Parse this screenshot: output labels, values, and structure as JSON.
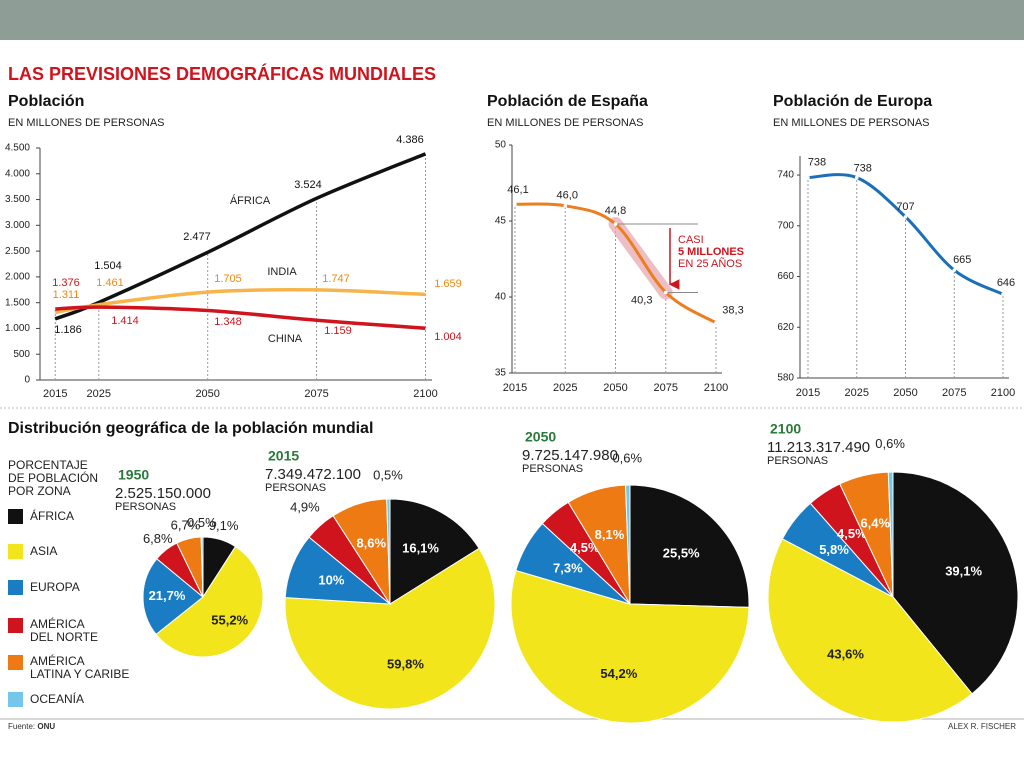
{
  "title": "LAS PREVISIONES DEMOGRÁFICAS MUNDIALES",
  "chart_data": [
    {
      "type": "line",
      "title": "Población",
      "subtitle": "EN MILLONES DE PERSONAS",
      "x": [
        2015,
        2025,
        2050,
        2075,
        2100
      ],
      "xlim": [
        2011.5,
        2101.5
      ],
      "xticks": [
        2015,
        2025,
        2050,
        2075,
        2100
      ],
      "ylim": [
        0,
        4500
      ],
      "yticks": [
        {
          "value": 0,
          "label": "0"
        },
        {
          "value": 500,
          "label": "500"
        },
        {
          "value": 1000,
          "label": "1.000"
        },
        {
          "value": 1500,
          "label": "1.500"
        },
        {
          "value": 2000,
          "label": "2.000"
        },
        {
          "value": 2500,
          "label": "2.500"
        },
        {
          "value": 3000,
          "label": "3.000"
        },
        {
          "value": 3500,
          "label": "3.500"
        },
        {
          "value": 4000,
          "label": "4.000"
        },
        {
          "value": 4500,
          "label": "4.500"
        }
      ],
      "series": [
        {
          "name": "ÁFRICA",
          "color": "#111111",
          "values": [
            1186,
            1504,
            2477,
            3524,
            4386
          ],
          "value_labels": [
            "1.186",
            "1.504",
            "2.477",
            "3.524",
            "4.386"
          ]
        },
        {
          "name": "INDIA",
          "color": "#f6b44a",
          "values": [
            1311,
            1461,
            1705,
            1747,
            1659
          ],
          "value_labels": [
            "1.311",
            "1.461",
            "1.705",
            "1.747",
            "1.659"
          ]
        },
        {
          "name": "CHINA",
          "color": "#d0141e",
          "values": [
            1376,
            1414,
            1348,
            1159,
            1004
          ],
          "value_labels": [
            "1.376",
            "1.414",
            "1.348",
            "1.159",
            "1.004"
          ]
        }
      ]
    },
    {
      "type": "line",
      "title": "Población de España",
      "subtitle": "EN MILLONES DE PERSONAS",
      "categories": [
        "2015",
        "2025",
        "2050",
        "2075",
        "2100"
      ],
      "values": [
        46.1,
        46.0,
        44.8,
        40.3,
        38.3
      ],
      "value_labels": [
        "46,1",
        "46,0",
        "44,8",
        "40,3",
        "38,3"
      ],
      "color": "#ee7d1e",
      "ylim": [
        35,
        50
      ],
      "yticks": [
        35,
        40,
        45,
        50
      ],
      "annotation": [
        "CASI",
        "5 MILLONES",
        "EN 25 AÑOS"
      ]
    },
    {
      "type": "line",
      "title": "Población de Europa",
      "subtitle": "EN MILLONES DE PERSONAS",
      "categories": [
        "2015",
        "2025",
        "2050",
        "2075",
        "2100"
      ],
      "values": [
        738,
        738,
        707,
        665,
        646
      ],
      "color": "#1a6fb8",
      "ylim": [
        580,
        755
      ],
      "yticks": [
        580,
        620,
        660,
        700,
        740
      ]
    },
    {
      "type": "pie",
      "title": "Distribución geográfica de la población mundial",
      "legend_title": "PORCENTAJE\nDE POBLACIÓN\nPOR ZONA",
      "categories": [
        "ÁFRICA",
        "ASIA",
        "EUROPA",
        "AMÉRICA\nDEL NORTE",
        "AMÉRICA\nLATINA Y CARIBE",
        "OCEANÍA"
      ],
      "colors": [
        "#111111",
        "#f2e51c",
        "#1a7dc4",
        "#d0141e",
        "#ee7a14",
        "#74c7e8"
      ],
      "pies": [
        {
          "year": "1950",
          "total": "2.525.150.000",
          "unit": "PERSONAS",
          "values": [
            9.1,
            55.2,
            21.7,
            6.8,
            6.7,
            0.5
          ],
          "value_labels": [
            "9,1%",
            "55,2%",
            "21,7%",
            "6,8%",
            "6,7%",
            "0,5%"
          ]
        },
        {
          "year": "2015",
          "total": "7.349.472.100",
          "unit": "PERSONAS",
          "values": [
            16.1,
            59.8,
            10,
            4.9,
            8.6,
            0.5
          ],
          "value_labels": [
            "16,1%",
            "59,8%",
            "10%",
            "4,9%",
            "8,6%",
            "0,5%"
          ]
        },
        {
          "year": "2050",
          "total": "9.725.147.980",
          "unit": "PERSONAS",
          "values": [
            25.5,
            54.2,
            7.3,
            4.5,
            8.1,
            0.6
          ],
          "value_labels": [
            "25,5%",
            "54,2%",
            "7,3%",
            "4,5%",
            "8,1%",
            "0,6%"
          ]
        },
        {
          "year": "2100",
          "total": "11.213.317.490",
          "unit": "PERSONAS",
          "values": [
            39.1,
            43.6,
            5.8,
            4.5,
            6.4,
            0.6
          ],
          "value_labels": [
            "39,1%",
            "43,6%",
            "5,8%",
            "4,5%",
            "6,4%",
            "0,6%"
          ]
        }
      ]
    }
  ],
  "source": {
    "label": "Fuente:",
    "name": "ONU"
  },
  "credit": "ALEX R. FISCHER"
}
